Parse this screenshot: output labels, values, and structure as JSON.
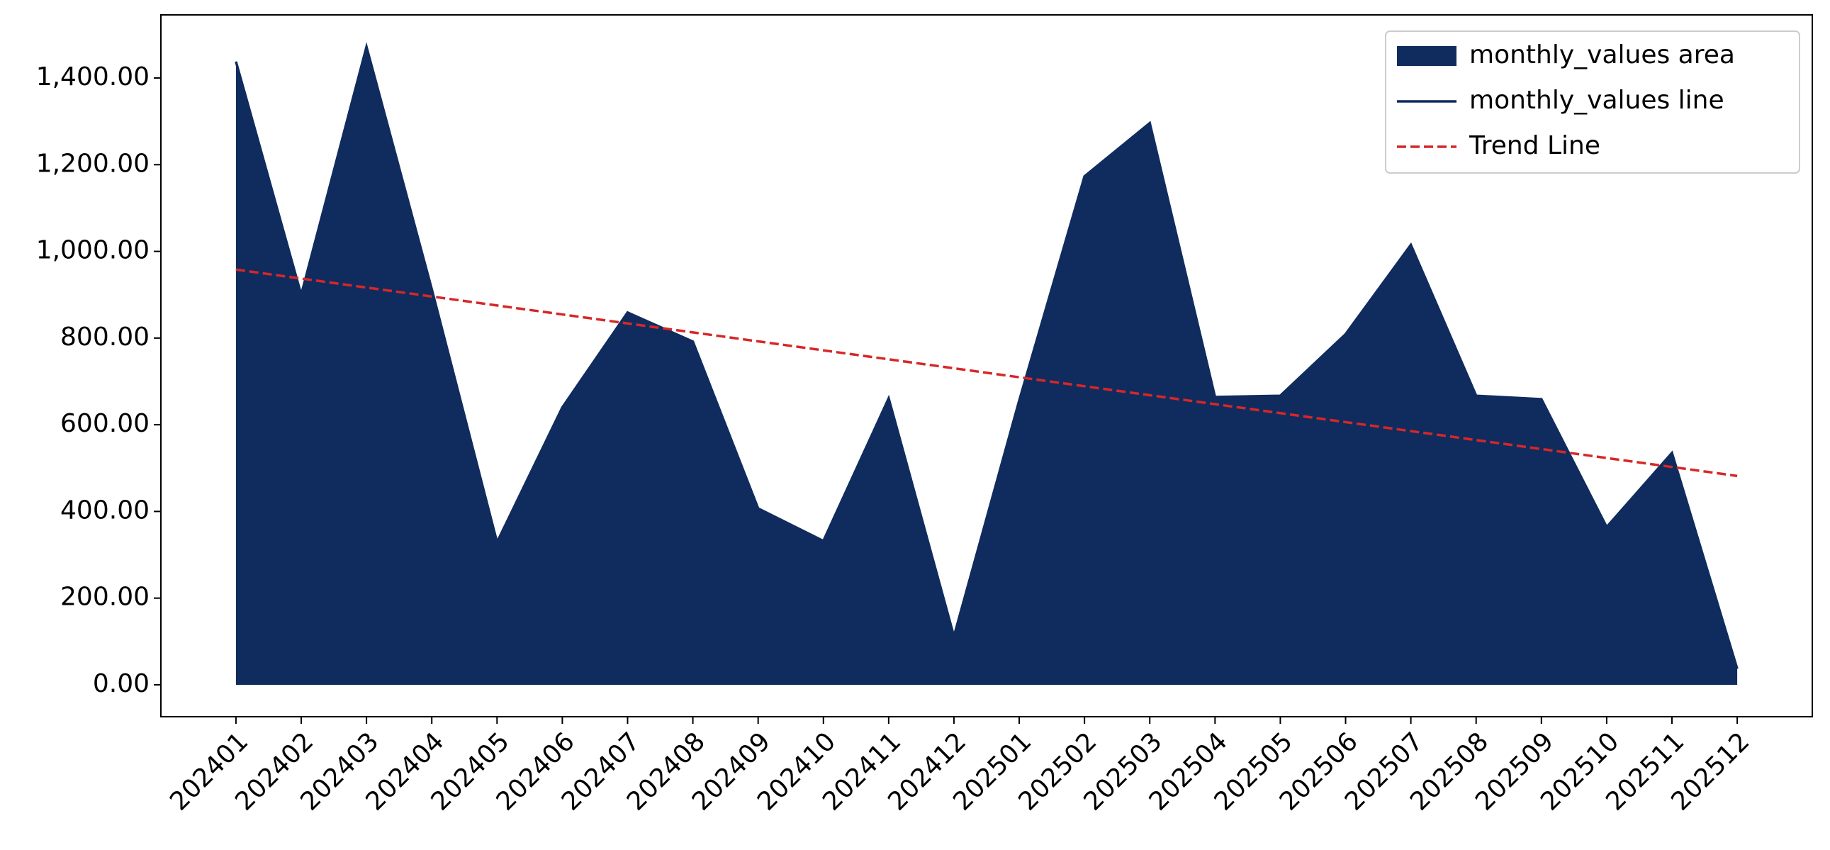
{
  "chart_data": {
    "type": "area",
    "categories": [
      "202401",
      "202402",
      "202403",
      "202404",
      "202405",
      "202406",
      "202407",
      "202408",
      "202409",
      "202410",
      "202411",
      "202412",
      "202501",
      "202502",
      "202503",
      "202504",
      "202505",
      "202506",
      "202507",
      "202508",
      "202509",
      "202510",
      "202511",
      "202512"
    ],
    "series": [
      {
        "name": "monthly_values area",
        "kind": "area",
        "color": "#102c5e",
        "values": [
          1438,
          900,
          1472,
          913,
          329,
          640,
          859,
          792,
          407,
          332,
          661,
          112,
          656,
          1173,
          1296,
          664,
          667,
          809,
          1015,
          667,
          659,
          364,
          535,
          37
        ]
      },
      {
        "name": "monthly_values line",
        "kind": "line",
        "color": "#102c5e",
        "values": [
          1438,
          900,
          1472,
          913,
          329,
          640,
          859,
          792,
          407,
          332,
          661,
          112,
          656,
          1173,
          1296,
          664,
          667,
          809,
          1015,
          667,
          659,
          364,
          535,
          37
        ]
      },
      {
        "name": "Trend Line",
        "kind": "line",
        "dashed": true,
        "color": "#d62728",
        "values": [
          958,
          937.3,
          916.6,
          895.9,
          875.2,
          854.5,
          833.8,
          813.1,
          792.4,
          771.7,
          751.0,
          730.3,
          709.6,
          688.9,
          668.2,
          647.5,
          626.8,
          606.1,
          585.4,
          564.7,
          544.0,
          523.3,
          502.6,
          481.9
        ]
      }
    ],
    "ylim": [
      -73.6,
      1545.6
    ],
    "yticks": [
      {
        "value": 0,
        "label": "0.00"
      },
      {
        "value": 200,
        "label": "200.00"
      },
      {
        "value": 400,
        "label": "400.00"
      },
      {
        "value": 600,
        "label": "600.00"
      },
      {
        "value": 800,
        "label": "800.00"
      },
      {
        "value": 1000,
        "label": "1,000.00"
      },
      {
        "value": 1200,
        "label": "1,200.00"
      },
      {
        "value": 1400,
        "label": "1,400.00"
      }
    ],
    "legend": "upper right"
  }
}
